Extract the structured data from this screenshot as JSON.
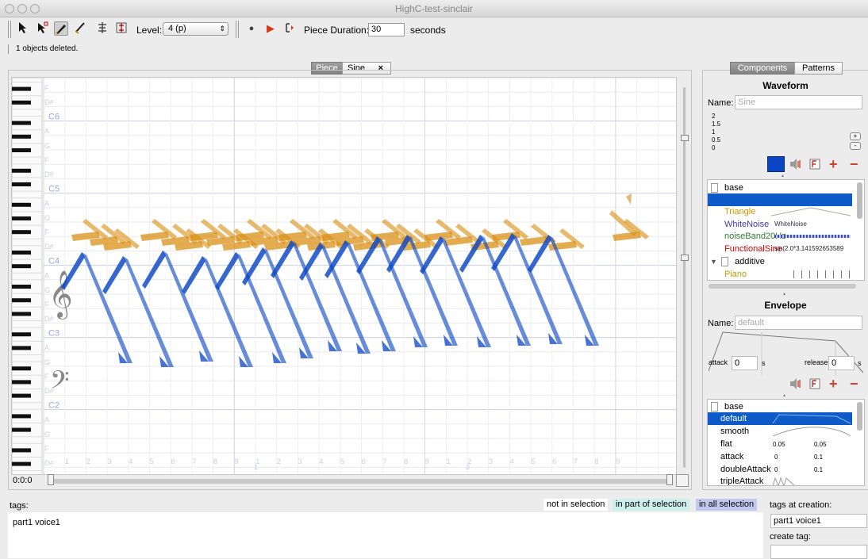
{
  "window": {
    "title": "HighC-test-sinclair"
  },
  "toolbar": {
    "level_label": "Level:",
    "level_value": "4 (p)",
    "duration_label": "Piece Duration:",
    "duration_value": "30",
    "duration_unit": "seconds"
  },
  "status": {
    "message": "1 objects deleted."
  },
  "tabs": {
    "piece": "Piece",
    "sine": "Sine",
    "close": "×"
  },
  "roll": {
    "note_labels": [
      "F",
      "D#",
      "C6",
      "A",
      "G",
      "F",
      "D#",
      "C5",
      "A",
      "G",
      "F",
      "D#",
      "C4",
      "A",
      "G",
      "F",
      "D#",
      "C3",
      "A",
      "G",
      "F",
      "D#",
      "C2",
      "A",
      "G",
      "F",
      "D#",
      "C"
    ],
    "beat_labels": [
      "1",
      "2",
      "3",
      "4",
      "5",
      "6",
      "7",
      "8",
      "9",
      "1",
      "2",
      "3",
      "4",
      "5",
      "6",
      "7",
      "8",
      "9",
      "1",
      "2",
      "3",
      "4",
      "5",
      "6",
      "7",
      "8",
      "9"
    ],
    "bar_labels": [
      "1",
      "2"
    ],
    "time_readout": "0:0:0"
  },
  "right_tabs": {
    "components": "Components",
    "patterns": "Patterns"
  },
  "waveform": {
    "title": "Waveform",
    "name_label": "Name:",
    "name_value": "Sine",
    "axis": [
      "2",
      "1.5",
      "1",
      "0.5",
      "0"
    ],
    "zoom_plus": "+",
    "zoom_minus": "-",
    "items": [
      {
        "label": "base",
        "color": "#000000",
        "detail": ""
      },
      {
        "label": "Sine",
        "color": "#ffffff",
        "detail": ""
      },
      {
        "label": "Triangle",
        "color": "#c79a00",
        "detail": ""
      },
      {
        "label": "WhiteNoise",
        "color": "#3b3ba0",
        "detail": "WhiteNoise"
      },
      {
        "label": "noiseBand20Hz",
        "color": "#2e7d32",
        "detail": ""
      },
      {
        "label": "FunctionalSine",
        "color": "#d00000",
        "detail": "sin(2.0*3.141592653589"
      },
      {
        "label": "additive",
        "color": "#000000",
        "detail": ""
      },
      {
        "label": "Piano",
        "color": "#c79a00",
        "detail": ""
      }
    ]
  },
  "envelope": {
    "title": "Envelope",
    "name_label": "Name:",
    "name_value": "default",
    "attack_label": "attack",
    "attack_value": "0",
    "attack_unit": "s",
    "release_label": "release",
    "release_value": "0",
    "release_unit": "s",
    "items": [
      {
        "label": "base",
        "v1": "",
        "v2": ""
      },
      {
        "label": "default",
        "v1": "",
        "v2": ""
      },
      {
        "label": "smooth",
        "v1": "",
        "v2": ""
      },
      {
        "label": "flat",
        "v1": "0.05",
        "v2": "0.05"
      },
      {
        "label": "attack",
        "v1": "0",
        "v2": "0.1"
      },
      {
        "label": "doubleAttack",
        "v1": "0",
        "v2": "0.1"
      },
      {
        "label": "tripleAttack",
        "v1": "",
        "v2": ""
      }
    ]
  },
  "tags": {
    "label": "tags:",
    "value": "part1 voice1",
    "legend_not": "not in selection",
    "legend_part": "in part of selection",
    "legend_all": "in all selection",
    "at_creation_label": "tags at creation:",
    "at_creation_value": "part1 voice1",
    "create_label": "create tag:",
    "create_value": ""
  },
  "colors": {
    "orange": "#d98c0c",
    "blue": "#0a45c4",
    "selection": "#0c5bc8"
  }
}
